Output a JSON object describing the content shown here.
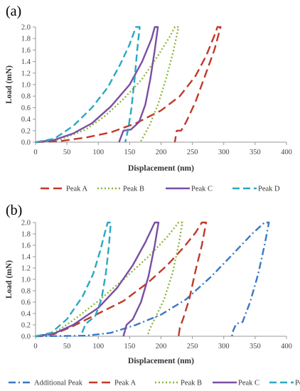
{
  "colors": {
    "Additional Peak": "#3a78c2",
    "Peak A": "#c0392b",
    "Peak B": "#8db63c",
    "Peak C": "#7a4fa3",
    "Peak D": "#2aa8c4",
    "axis": "#999999",
    "grid": "#d9d9d9"
  },
  "chart_data": [
    {
      "type": "line",
      "panel_label": "(a)",
      "xlabel": "Displacement (nm)",
      "ylabel": "Load (mN)",
      "xlim": [
        0,
        400
      ],
      "ylim": [
        0,
        2.0
      ],
      "x_ticks": [
        "0",
        "50",
        "100",
        "150",
        "200",
        "250",
        "300",
        "350",
        "400"
      ],
      "y_ticks": [
        "0.0",
        "0.2",
        "0.4",
        "0.6",
        "0.8",
        "1.0",
        "1.2",
        "1.4",
        "1.6",
        "1.8",
        "2.0"
      ],
      "grid": "none",
      "legend_position": "bottom",
      "legend": [
        "Peak A",
        "Peak B",
        "Peak C",
        "Peak D"
      ],
      "series": [
        {
          "name": "Peak A",
          "loading": [
            [
              0,
              0
            ],
            [
              40,
              0.02
            ],
            [
              80,
              0.08
            ],
            [
              120,
              0.17
            ],
            [
              160,
              0.33
            ],
            [
              200,
              0.55
            ],
            [
              230,
              0.8
            ],
            [
              255,
              1.15
            ],
            [
              272,
              1.5
            ],
            [
              285,
              1.85
            ],
            [
              290,
              2.0
            ]
          ],
          "unloading": [
            [
              295,
              2.0
            ],
            [
              285,
              1.6
            ],
            [
              270,
              1.15
            ],
            [
              255,
              0.7
            ],
            [
              240,
              0.35
            ],
            [
              232,
              0.2
            ],
            [
              225,
              0.2
            ],
            [
              222,
              0.0
            ]
          ]
        },
        {
          "name": "Peak B",
          "loading": [
            [
              0,
              0
            ],
            [
              40,
              0.05
            ],
            [
              80,
              0.22
            ],
            [
              110,
              0.45
            ],
            [
              140,
              0.75
            ],
            [
              170,
              1.1
            ],
            [
              195,
              1.5
            ],
            [
              215,
              1.85
            ],
            [
              222,
              2.0
            ]
          ],
          "unloading": [
            [
              228,
              2.0
            ],
            [
              220,
              1.6
            ],
            [
              208,
              1.1
            ],
            [
              195,
              0.65
            ],
            [
              182,
              0.3
            ],
            [
              173,
              0.12
            ],
            [
              167,
              0.0
            ]
          ]
        },
        {
          "name": "Peak C",
          "loading": [
            [
              0,
              0
            ],
            [
              30,
              0.04
            ],
            [
              60,
              0.15
            ],
            [
              90,
              0.33
            ],
            [
              120,
              0.62
            ],
            [
              150,
              1.0
            ],
            [
              170,
              1.4
            ],
            [
              185,
              1.8
            ],
            [
              190,
              2.0
            ]
          ],
          "unloading": [
            [
              195,
              2.0
            ],
            [
              190,
              1.6
            ],
            [
              183,
              1.1
            ],
            [
              175,
              0.65
            ],
            [
              165,
              0.35
            ],
            [
              152,
              0.22
            ],
            [
              140,
              0.2
            ],
            [
              133,
              0.0
            ]
          ]
        },
        {
          "name": "Peak D",
          "loading": [
            [
              0,
              0
            ],
            [
              30,
              0.06
            ],
            [
              60,
              0.28
            ],
            [
              90,
              0.6
            ],
            [
              115,
              0.95
            ],
            [
              135,
              1.35
            ],
            [
              150,
              1.7
            ],
            [
              160,
              2.0
            ]
          ],
          "unloading": [
            [
              166,
              2.0
            ],
            [
              162,
              1.6
            ],
            [
              158,
              1.1
            ],
            [
              153,
              0.6
            ],
            [
              148,
              0.25
            ],
            [
              143,
              0.0
            ]
          ]
        }
      ]
    },
    {
      "type": "line",
      "panel_label": "(b)",
      "xlabel": "Displacement (nm)",
      "ylabel": "Load (mN)",
      "xlim": [
        0,
        400
      ],
      "ylim": [
        0,
        2.0
      ],
      "x_ticks": [
        "0",
        "50",
        "100",
        "150",
        "200",
        "250",
        "300",
        "350",
        "400"
      ],
      "y_ticks": [
        "0.0",
        "0.2",
        "0.4",
        "0.6",
        "0.8",
        "1.0",
        "1.2",
        "1.4",
        "1.6",
        "1.8",
        "2.0"
      ],
      "grid": "none",
      "legend_position": "bottom",
      "legend": [
        "Additional Peak",
        "Peak A",
        "Peak B",
        "Peak C",
        "Peak D"
      ],
      "series": [
        {
          "name": "Additional Peak",
          "loading": [
            [
              0,
              0
            ],
            [
              80,
              0.01
            ],
            [
              120,
              0.06
            ],
            [
              160,
              0.2
            ],
            [
              200,
              0.38
            ],
            [
              240,
              0.65
            ],
            [
              280,
              1.05
            ],
            [
              315,
              1.45
            ],
            [
              345,
              1.8
            ],
            [
              365,
              2.0
            ]
          ],
          "unloading": [
            [
              372,
              2.0
            ],
            [
              365,
              1.6
            ],
            [
              355,
              1.1
            ],
            [
              342,
              0.6
            ],
            [
              330,
              0.25
            ],
            [
              320,
              0.22
            ],
            [
              315,
              0.1
            ],
            [
              313,
              0.0
            ]
          ]
        },
        {
          "name": "Peak A",
          "loading": [
            [
              0,
              0
            ],
            [
              30,
              0.04
            ],
            [
              60,
              0.18
            ],
            [
              100,
              0.4
            ],
            [
              140,
              0.62
            ],
            [
              180,
              0.95
            ],
            [
              210,
              1.25
            ],
            [
              235,
              1.55
            ],
            [
              255,
              1.82
            ],
            [
              265,
              2.0
            ]
          ],
          "unloading": [
            [
              272,
              2.0
            ],
            [
              265,
              1.6
            ],
            [
              255,
              1.15
            ],
            [
              245,
              0.65
            ],
            [
              235,
              0.3
            ],
            [
              230,
              0.15
            ],
            [
              228,
              0.0
            ]
          ]
        },
        {
          "name": "Peak B",
          "loading": [
            [
              0,
              0
            ],
            [
              30,
              0.06
            ],
            [
              60,
              0.28
            ],
            [
              100,
              0.62
            ],
            [
              140,
              1.0
            ],
            [
              180,
              1.4
            ],
            [
              210,
              1.75
            ],
            [
              228,
              2.0
            ]
          ],
          "unloading": [
            [
              234,
              2.0
            ],
            [
              228,
              1.6
            ],
            [
              218,
              1.1
            ],
            [
              205,
              0.65
            ],
            [
              192,
              0.35
            ],
            [
              183,
              0.15
            ],
            [
              178,
              0.0
            ]
          ]
        },
        {
          "name": "Peak C",
          "loading": [
            [
              0,
              0
            ],
            [
              30,
              0.05
            ],
            [
              60,
              0.2
            ],
            [
              100,
              0.5
            ],
            [
              130,
              0.85
            ],
            [
              155,
              1.25
            ],
            [
              175,
              1.65
            ],
            [
              190,
              2.0
            ]
          ],
          "unloading": [
            [
              196,
              2.0
            ],
            [
              190,
              1.6
            ],
            [
              180,
              1.05
            ],
            [
              168,
              0.6
            ],
            [
              155,
              0.3
            ],
            [
              145,
              0.2
            ],
            [
              140,
              0.0
            ]
          ]
        },
        {
          "name": "Peak D",
          "loading": [
            [
              0,
              0
            ],
            [
              25,
              0.06
            ],
            [
              50,
              0.3
            ],
            [
              75,
              0.7
            ],
            [
              92,
              1.1
            ],
            [
              103,
              1.5
            ],
            [
              110,
              1.8
            ],
            [
              115,
              2.0
            ]
          ],
          "unloading": [
            [
              120,
              2.0
            ],
            [
              117,
              1.6
            ],
            [
              112,
              1.1
            ],
            [
              105,
              0.65
            ],
            [
              95,
              0.35
            ],
            [
              80,
              0.22
            ],
            [
              72,
              0.0
            ]
          ]
        }
      ]
    }
  ]
}
